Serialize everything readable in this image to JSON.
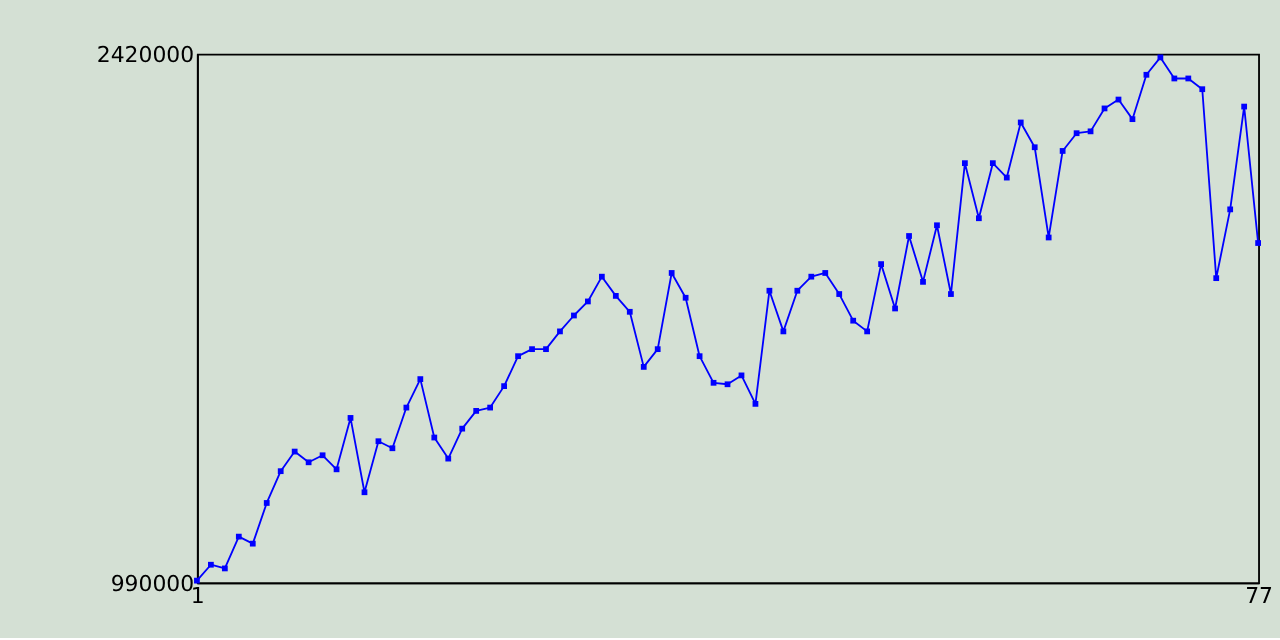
{
  "chart_data": {
    "type": "line",
    "x": [
      1,
      2,
      3,
      4,
      5,
      6,
      7,
      8,
      9,
      10,
      11,
      12,
      13,
      14,
      15,
      16,
      17,
      18,
      19,
      20,
      21,
      22,
      23,
      24,
      25,
      26,
      27,
      28,
      29,
      30,
      31,
      32,
      33,
      34,
      35,
      36,
      37,
      38,
      39,
      40,
      41,
      42,
      43,
      44,
      45,
      46,
      47,
      48,
      49,
      50,
      51,
      52,
      53,
      54,
      55,
      56,
      57,
      58,
      59,
      60,
      61,
      62,
      63,
      64,
      65,
      66,
      67,
      68,
      69,
      70,
      71,
      72,
      73,
      74,
      75,
      76,
      77
    ],
    "series": [
      {
        "color": "#0000ff",
        "values": [
          995000,
          1038000,
          1028000,
          1114000,
          1095000,
          1205000,
          1291000,
          1344000,
          1315000,
          1334000,
          1296000,
          1435000,
          1234000,
          1372000,
          1353000,
          1463000,
          1540000,
          1382000,
          1325000,
          1406000,
          1454000,
          1463000,
          1521000,
          1602000,
          1621000,
          1621000,
          1669000,
          1712000,
          1750000,
          1817000,
          1765000,
          1722000,
          1573000,
          1621000,
          1827000,
          1760000,
          1602000,
          1530000,
          1526000,
          1550000,
          1473000,
          1779000,
          1669000,
          1779000,
          1817000,
          1827000,
          1770000,
          1698000,
          1669000,
          1851000,
          1731000,
          1927000,
          1803000,
          1956000,
          1770000,
          2124000,
          1975000,
          2124000,
          2085000,
          2234000,
          2167000,
          1923000,
          2157000,
          2205000,
          2210000,
          2272000,
          2296000,
          2243000,
          2363000,
          2410000,
          2353000,
          2353000,
          2324000,
          1813000,
          1999000,
          2277000,
          1908000
        ]
      }
    ],
    "xlim": [
      1,
      77
    ],
    "xticks": [
      1,
      77
    ],
    "ylim": [
      990000,
      2420000
    ],
    "yticks": [
      990000,
      2420000
    ],
    "marker": "square",
    "line_style": "solid",
    "grid": false,
    "legend": false
  }
}
